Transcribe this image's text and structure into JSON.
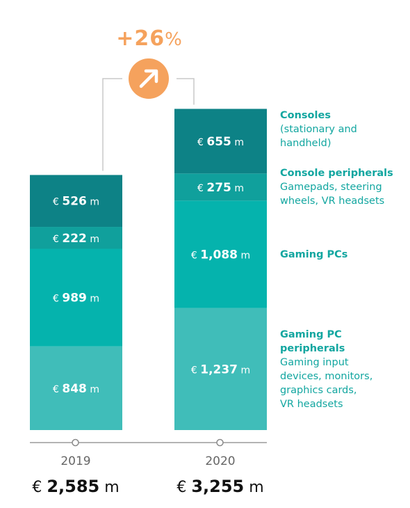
{
  "growth": {
    "value": "+26",
    "unit": "%"
  },
  "colors": {
    "consoles": "#0d8286",
    "console_peripherals": "#10a09c",
    "gaming_pcs": "#05b3ad",
    "gaming_pc_peripherals": "#40bdb9",
    "accent": "#f5a25d",
    "legend_text": "#12a6a0"
  },
  "legend": [
    {
      "title": "Consoles",
      "desc": "(stationary and\nhandheld)"
    },
    {
      "title": "Console peripherals",
      "desc": "Gamepads, steering\nwheels, VR headsets"
    },
    {
      "title": "Gaming PCs",
      "desc": ""
    },
    {
      "title": "Gaming PC\nperipherals",
      "desc": "Gaming input\ndevices, monitors,\ngraphics cards,\nVR headsets"
    }
  ],
  "chart_data": {
    "type": "bar",
    "stacked": true,
    "categories": [
      "2019",
      "2020"
    ],
    "currency": "€",
    "unit": "m",
    "series": [
      {
        "name": "Gaming PC peripherals",
        "values": [
          848,
          1237
        ],
        "labels": [
          "848",
          "1,237"
        ]
      },
      {
        "name": "Gaming PCs",
        "values": [
          989,
          1088
        ],
        "labels": [
          "989",
          "1,088"
        ]
      },
      {
        "name": "Console peripherals",
        "values": [
          222,
          275
        ],
        "labels": [
          "222",
          "275"
        ]
      },
      {
        "name": "Consoles",
        "values": [
          526,
          655
        ],
        "labels": [
          "526",
          "655"
        ]
      }
    ],
    "totals": [
      2585,
      3255
    ],
    "total_labels": [
      "2,585",
      "3,255"
    ]
  }
}
